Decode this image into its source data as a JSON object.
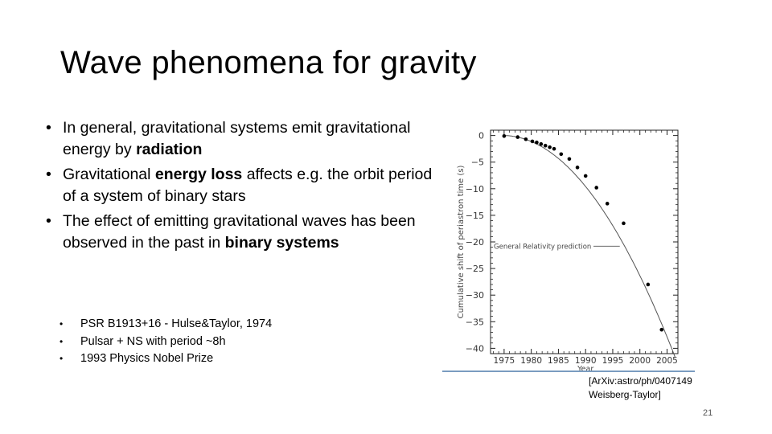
{
  "slide": {
    "title": "Wave phenomena for gravity",
    "bullets": [
      {
        "parts": [
          {
            "text": "In general, gravitational systems emit gravitational energy by ",
            "bold": false
          },
          {
            "text": "radiation",
            "bold": true
          }
        ]
      },
      {
        "parts": [
          {
            "text": "Gravitational ",
            "bold": false
          },
          {
            "text": "energy loss",
            "bold": true
          },
          {
            "text": " affects e.g. the orbit period of a system of binary stars",
            "bold": false
          }
        ]
      },
      {
        "parts": [
          {
            "text": "The effect of emitting gravitational waves has been observed in the past in ",
            "bold": false
          },
          {
            "text": "binary systems",
            "bold": true
          }
        ]
      }
    ],
    "bullet_symbol": "•",
    "subbullets": [
      "PSR B1913+16 - Hulse&Taylor, 1974",
      "Pulsar + NS with period ~8h",
      "1993 Physics Nobel Prize"
    ],
    "citation": [
      "[ArXiv:astro/ph/0407149",
      "Weisberg-Taylor]"
    ],
    "page_number": "21"
  },
  "chart_data": {
    "type": "scatter",
    "title": "",
    "xlabel": "Year",
    "ylabel": "Cumulative shift of periastron time (s)",
    "xlim": [
      1972.5,
      2007
    ],
    "ylim": [
      -41,
      1
    ],
    "xticks": [
      1975,
      1980,
      1985,
      1990,
      1995,
      2000,
      2005
    ],
    "xtick_labels": [
      "1975",
      "1980",
      "1985",
      "1990",
      "1995",
      "2000",
      "2005"
    ],
    "yticks": [
      0,
      -5,
      -10,
      -15,
      -20,
      -25,
      -30,
      -35,
      -40
    ],
    "ytick_labels": [
      "0",
      "−5",
      "−10",
      "−15",
      "−20",
      "−25",
      "−30",
      "−35",
      "−40"
    ],
    "curve_label": "General Relativity prediction",
    "curve": {
      "x0": 1974.8,
      "x1": 2006.5,
      "a": 0.0415
    },
    "points": {
      "x": [
        1975,
        1977.5,
        1979,
        1980.2,
        1981,
        1981.8,
        1982.6,
        1983.4,
        1984.2,
        1985.5,
        1987,
        1988.5,
        1990,
        1992,
        1994,
        1997,
        2001.5,
        2004
      ],
      "y": [
        -0.1,
        -0.3,
        -0.7,
        -1.1,
        -1.3,
        -1.6,
        -1.9,
        -2.2,
        -2.5,
        -3.5,
        -4.4,
        -6.0,
        -7.6,
        -9.8,
        -12.8,
        -16.5,
        -28.0,
        -36.5
      ]
    },
    "grid": false,
    "legend": "none",
    "colors": {
      "points": "#000000",
      "curve": "#555555",
      "axes": "#222222",
      "baseline": "#7a9cc0"
    }
  }
}
